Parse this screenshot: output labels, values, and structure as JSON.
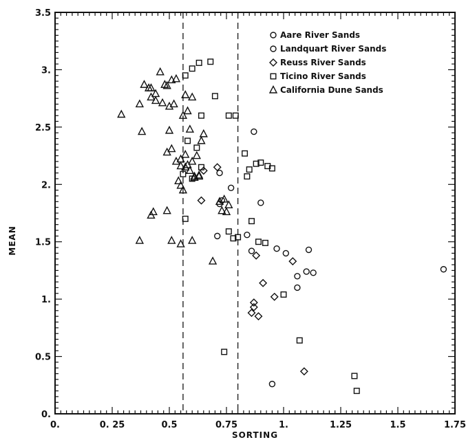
{
  "chart_data": {
    "type": "scatter",
    "xlabel": "SORTING",
    "ylabel": "MEAN",
    "xlim": [
      0,
      1.75
    ],
    "ylim": [
      0,
      3.5
    ],
    "x_tick_labels": [
      "0.",
      "0. 25",
      "0.5",
      "0.75",
      "1.",
      "1.25",
      "1.5",
      "1.75"
    ],
    "y_tick_labels": [
      "0.",
      "0.5",
      "1.",
      "1.5",
      "2.",
      "2.5",
      "3.",
      "3.5"
    ],
    "x_tick_values": [
      0,
      0.25,
      0.5,
      0.75,
      1.0,
      1.25,
      1.5,
      1.75
    ],
    "y_tick_values": [
      0,
      0.5,
      1.0,
      1.5,
      2.0,
      2.5,
      3.0,
      3.5
    ],
    "reference_lines_x": [
      0.56,
      0.8
    ],
    "reference_line_style": "dashed",
    "legend_position": "top-right",
    "grid": false,
    "series": [
      {
        "name": "Aare River Sands",
        "marker": "open-circle",
        "x": [
          0.71,
          0.73,
          0.72,
          0.84,
          0.9,
          0.86,
          0.97,
          1.01,
          1.06,
          1.1,
          0.95
        ],
        "y": [
          1.55,
          1.86,
          1.83,
          1.56,
          1.84,
          1.42,
          1.44,
          1.4,
          1.2,
          1.24,
          0.26
        ]
      },
      {
        "name": "Landquart River Sands",
        "marker": "filled-circle",
        "x": [
          0.87,
          0.72,
          0.77,
          1.11,
          1.13,
          1.06,
          1.7
        ],
        "y": [
          2.46,
          2.1,
          1.97,
          1.43,
          1.23,
          1.1,
          1.26
        ]
      },
      {
        "name": "Reuss River Sands",
        "marker": "open-diamond",
        "x": [
          0.65,
          0.71,
          0.64,
          1.04,
          0.88,
          0.91,
          0.87,
          0.87,
          0.86,
          0.96,
          0.89,
          1.09
        ],
        "y": [
          2.12,
          2.15,
          1.86,
          1.33,
          1.38,
          1.14,
          0.97,
          0.93,
          0.88,
          1.02,
          0.85,
          0.37
        ]
      },
      {
        "name": "Ticino River Sands",
        "marker": "open-square",
        "x": [
          0.57,
          0.6,
          0.63,
          0.68,
          0.7,
          0.64,
          0.76,
          0.79,
          0.83,
          0.85,
          0.9,
          0.93,
          0.95,
          0.88,
          0.84,
          0.86,
          0.56,
          0.6,
          0.64,
          0.58,
          0.62,
          0.57,
          0.76,
          0.78,
          0.8,
          0.89,
          0.92,
          1.0,
          1.07,
          0.74,
          1.31,
          1.32
        ],
        "y": [
          2.95,
          3.01,
          3.06,
          3.07,
          2.77,
          2.6,
          2.6,
          2.6,
          2.27,
          2.13,
          2.19,
          2.16,
          2.14,
          2.18,
          2.07,
          1.68,
          2.09,
          2.05,
          2.15,
          2.38,
          2.32,
          1.7,
          1.59,
          1.53,
          1.54,
          1.5,
          1.49,
          1.04,
          0.64,
          0.54,
          0.33,
          0.2
        ]
      },
      {
        "name": "California Dune Sands",
        "marker": "open-triangle",
        "x": [
          0.29,
          0.37,
          0.39,
          0.41,
          0.42,
          0.44,
          0.46,
          0.48,
          0.49,
          0.51,
          0.53,
          0.44,
          0.47,
          0.5,
          0.52,
          0.57,
          0.58,
          0.59,
          0.6,
          0.38,
          0.42,
          0.5,
          0.55,
          0.57,
          0.6,
          0.62,
          0.64,
          0.65,
          0.56,
          0.58,
          0.59,
          0.61,
          0.63,
          0.49,
          0.51,
          0.53,
          0.55,
          0.57,
          0.54,
          0.55,
          0.56,
          0.61,
          0.63,
          0.72,
          0.74,
          0.76,
          0.73,
          0.75,
          0.43,
          0.42,
          0.49,
          0.37,
          0.51,
          0.55,
          0.6,
          0.69
        ],
        "y": [
          2.61,
          2.7,
          2.87,
          2.84,
          2.84,
          2.79,
          2.98,
          2.87,
          2.86,
          2.91,
          2.92,
          2.73,
          2.71,
          2.47,
          2.7,
          2.78,
          2.64,
          2.48,
          2.76,
          2.46,
          2.76,
          2.68,
          2.22,
          2.26,
          2.2,
          2.25,
          2.38,
          2.44,
          2.6,
          2.17,
          2.12,
          2.06,
          2.07,
          2.28,
          2.31,
          2.2,
          2.16,
          2.15,
          2.03,
          1.99,
          1.95,
          2.07,
          2.08,
          1.85,
          1.87,
          1.82,
          1.77,
          1.76,
          1.76,
          1.73,
          1.77,
          1.51,
          1.51,
          1.48,
          1.51,
          1.33
        ]
      }
    ]
  }
}
